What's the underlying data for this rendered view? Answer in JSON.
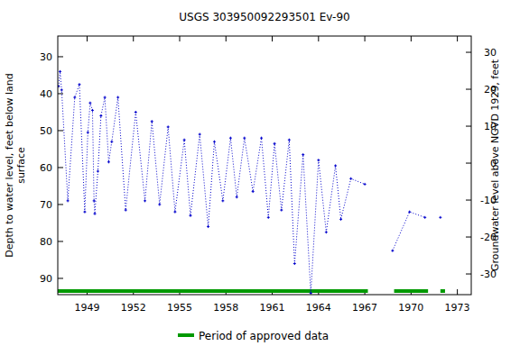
{
  "chart_data": {
    "type": "line",
    "title": "USGS 303950092293501 Ev-90",
    "ylabel": [
      "Depth to water level, feet below land",
      "surface"
    ],
    "y2label": "Groundwater level above NGVD 1929, feet",
    "xlim": [
      1947.1,
      1973.9
    ],
    "xticks": [
      1949,
      1952,
      1955,
      1958,
      1961,
      1964,
      1967,
      1970,
      1973
    ],
    "ylim": [
      24.4,
      94.4
    ],
    "yticks": [
      30,
      40,
      50,
      60,
      70,
      80,
      90
    ],
    "y2lim": [
      34.4,
      -35.6
    ],
    "y2ticks": [
      30,
      20,
      10,
      0,
      -10,
      -20,
      -30
    ],
    "series": [
      {
        "name": "Depth to water level",
        "color": "#0000cc",
        "marker": "plus",
        "line_style": "dotted",
        "x": [
          1947.15,
          1947.25,
          1947.35,
          1947.75,
          1948.2,
          1948.5,
          1948.85,
          1949.05,
          1949.2,
          1949.35,
          1949.45,
          1949.5,
          1949.7,
          1949.9,
          1950.15,
          1950.4,
          1950.6,
          1951.0,
          1951.5,
          1952.15,
          1952.75,
          1953.2,
          1953.7,
          1954.25,
          1954.7,
          1955.3,
          1955.7,
          1956.3,
          1956.85,
          1957.25,
          1957.8,
          1958.3,
          1958.7,
          1959.2,
          1959.75,
          1960.3,
          1960.75,
          1961.15,
          1961.6,
          1962.1,
          1962.45,
          1963.0,
          1963.5,
          1964.0,
          1964.5,
          1965.1,
          1965.45,
          1966.1,
          1967.0,
          1968.0,
          1968.8,
          1969.9,
          1970.9,
          1971.4,
          1971.9
        ],
        "values": [
          38,
          34,
          39,
          69,
          41,
          37.5,
          72,
          50.5,
          42.5,
          44.5,
          69,
          72.5,
          61,
          46,
          41,
          58.5,
          53,
          41,
          71.5,
          45,
          69,
          47.5,
          70,
          49,
          72,
          52.5,
          73,
          51,
          76,
          53,
          69,
          52,
          68,
          52,
          66.5,
          52,
          73.5,
          53.5,
          71.5,
          52.5,
          86,
          56.5,
          94,
          58,
          77.5,
          59.5,
          74,
          63,
          64.5,
          null,
          82.5,
          72,
          73.5,
          null,
          73.5
        ]
      }
    ],
    "approved_data": {
      "name": "Period of approved data",
      "color": "#009900",
      "periods": [
        [
          1947.1,
          1967.2
        ],
        [
          1968.9,
          1971.1
        ],
        [
          1971.9,
          1972.2
        ]
      ]
    }
  }
}
